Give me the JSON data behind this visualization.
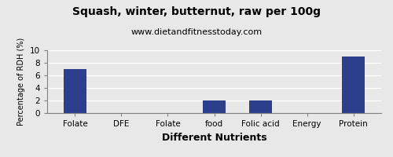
{
  "title": "Squash, winter, butternut, raw per 100g",
  "subtitle": "www.dietandfitnesstoday.com",
  "xlabel": "Different Nutrients",
  "ylabel": "Percentage of RDH (%)",
  "categories": [
    "Folate",
    "DFE",
    "Folate",
    "food",
    "Folic acid",
    "Energy",
    "Protein"
  ],
  "values": [
    7.0,
    0.0,
    0.0,
    2.0,
    2.0,
    0.0,
    9.0
  ],
  "bar_color": "#2b3f8c",
  "ylim": [
    0,
    10
  ],
  "yticks": [
    0,
    2,
    4,
    6,
    8,
    10
  ],
  "background_color": "#e8e8e8",
  "title_fontsize": 10,
  "subtitle_fontsize": 8,
  "xlabel_fontsize": 9,
  "ylabel_fontsize": 7,
  "tick_fontsize": 7.5
}
